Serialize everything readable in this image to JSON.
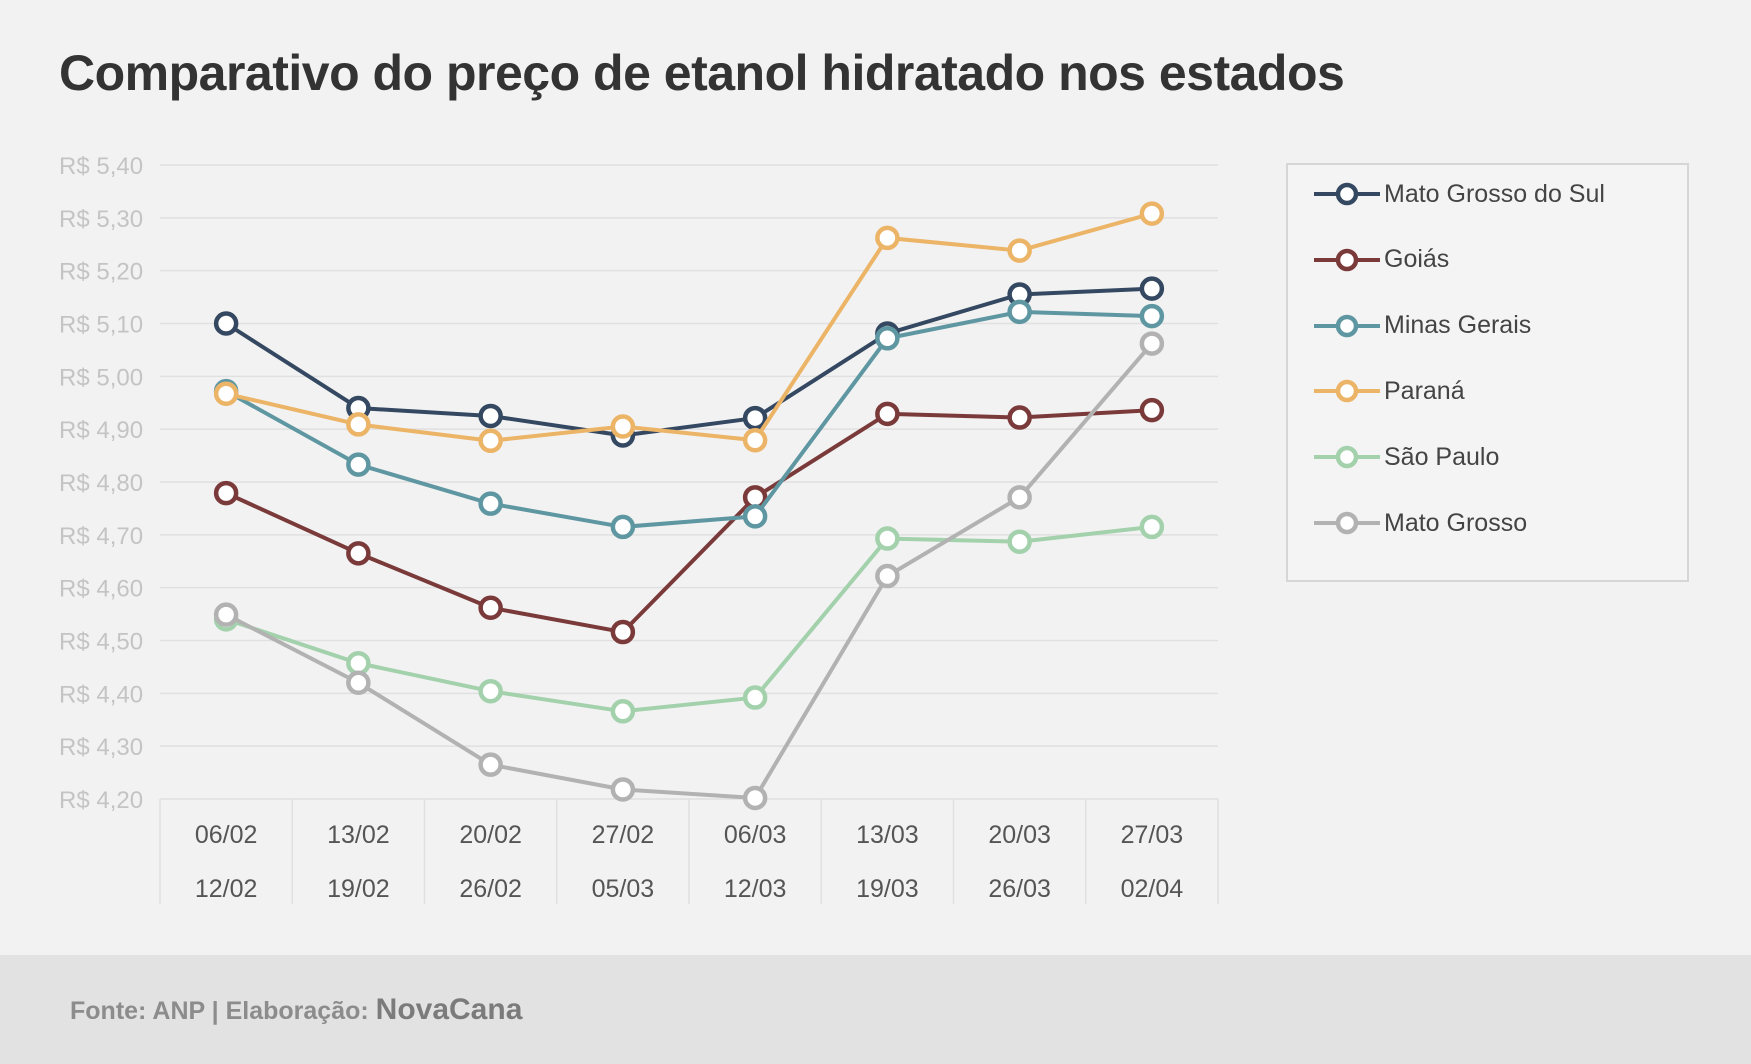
{
  "chart_data": {
    "type": "line",
    "title": "Comparativo do preço de etanol hidratado nos estados",
    "xlabel": "",
    "ylabel": "",
    "categories": [
      [
        "06/02",
        "12/02"
      ],
      [
        "13/02",
        "19/02"
      ],
      [
        "20/02",
        "26/02"
      ],
      [
        "27/02",
        "05/03"
      ],
      [
        "06/03",
        "12/03"
      ],
      [
        "13/03",
        "19/03"
      ],
      [
        "20/03",
        "26/03"
      ],
      [
        "27/03",
        "02/04"
      ]
    ],
    "ylim": [
      4.2,
      5.4
    ],
    "yticks": [
      5.4,
      5.3,
      5.2,
      5.1,
      5.0,
      4.9,
      4.8,
      4.7,
      4.6,
      4.5,
      4.4,
      4.3,
      4.2
    ],
    "ytick_labels": [
      "R$ 5,40",
      "R$ 5,30",
      "R$ 5,20",
      "R$ 5,10",
      "R$ 5,00",
      "R$ 4,90",
      "R$ 4,80",
      "R$ 4,70",
      "R$ 4,60",
      "R$ 4,50",
      "R$ 4,40",
      "R$ 4,30",
      "R$ 4,20"
    ],
    "grid": true,
    "legend_position": "right",
    "series": [
      {
        "name": "Mato Grosso do Sul",
        "color": "#344861",
        "values": [
          5.1,
          4.94,
          4.925,
          4.888,
          4.921,
          5.081,
          5.155,
          5.166
        ]
      },
      {
        "name": "Goiás",
        "color": "#7a3a3a",
        "values": [
          4.779,
          4.665,
          4.562,
          4.516,
          4.771,
          4.929,
          4.922,
          4.936
        ]
      },
      {
        "name": "Minas Gerais",
        "color": "#5e97a2",
        "values": [
          4.972,
          4.833,
          4.759,
          4.715,
          4.735,
          5.072,
          5.122,
          5.114
        ]
      },
      {
        "name": "Paraná",
        "color": "#ecb466",
        "values": [
          4.967,
          4.909,
          4.878,
          4.905,
          4.879,
          5.262,
          5.238,
          5.308
        ]
      },
      {
        "name": "São Paulo",
        "color": "#a2d1ac",
        "values": [
          4.54,
          4.457,
          4.404,
          4.366,
          4.392,
          4.693,
          4.687,
          4.715
        ]
      },
      {
        "name": "Mato Grosso",
        "color": "#b2b2b2",
        "values": [
          4.549,
          4.42,
          4.265,
          4.218,
          4.202,
          4.622,
          4.771,
          5.062
        ]
      }
    ]
  },
  "footer": {
    "source_label": "Fonte: ANP | Elaboração: ",
    "brand": "NovaCana"
  }
}
